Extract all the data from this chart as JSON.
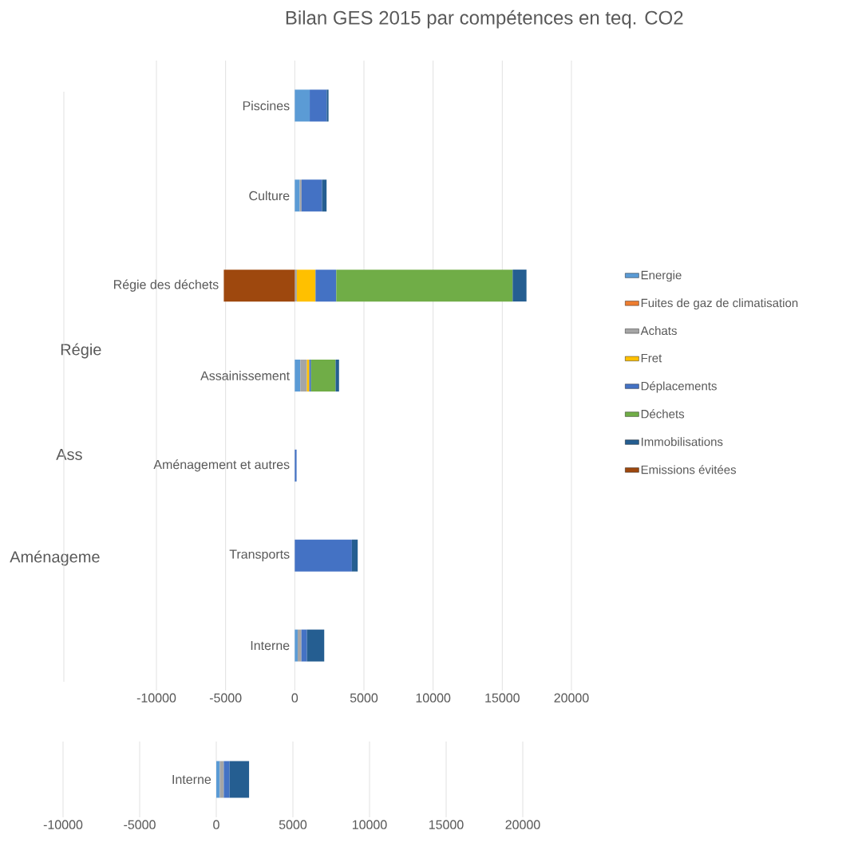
{
  "chart_data": [
    {
      "type": "bar",
      "orientation": "horizontal",
      "stacked": true,
      "title": "Bilan GES 2015 par compétences  en teq. CO2",
      "categories": [
        "Piscines",
        "Culture",
        "Régie des déchets",
        "Assainissement",
        "Aménagement et autres",
        "Transports",
        "Interne"
      ],
      "series": [
        {
          "name": "Energie",
          "color": "#5b9bd5",
          "values": [
            1080,
            360,
            null,
            400,
            null,
            null,
            210
          ]
        },
        {
          "name": "Fuites de gaz de climatisation",
          "color": "#ed7d31",
          "values": [
            null,
            null,
            null,
            null,
            null,
            null,
            null
          ]
        },
        {
          "name": "Achats",
          "color": "#a5a5a5",
          "values": [
            null,
            130,
            150,
            480,
            null,
            null,
            270
          ]
        },
        {
          "name": "Fret",
          "color": "#ffc000",
          "values": [
            null,
            null,
            1350,
            170,
            null,
            null,
            null
          ]
        },
        {
          "name": "Déplacements",
          "color": "#4472c4",
          "values": [
            1230,
            1480,
            1500,
            130,
            130,
            4130,
            400
          ]
        },
        {
          "name": "Déchets",
          "color": "#70ad47",
          "values": [
            null,
            null,
            12750,
            1770,
            null,
            null,
            null
          ]
        },
        {
          "name": "Immobilisations",
          "color": "#255e91",
          "values": [
            130,
            330,
            1000,
            250,
            null,
            420,
            1250
          ]
        },
        {
          "name": "Emissions évitées",
          "color": "#9e480e",
          "values": [
            null,
            null,
            -5130,
            null,
            null,
            null,
            null
          ]
        }
      ],
      "xlim": [
        -10000,
        20000
      ],
      "xticks": [
        -10000,
        -5000,
        0,
        5000,
        10000,
        15000,
        20000
      ],
      "grid": "x",
      "legend": "right",
      "annotations": [
        "Régie",
        "Ass",
        "Aménageme"
      ]
    },
    {
      "type": "bar",
      "orientation": "horizontal",
      "stacked": true,
      "categories": [
        "Interne"
      ],
      "series": [
        {
          "color": "#5b9bd5",
          "values": [
            230
          ]
        },
        {
          "color": "#a5a5a5",
          "values": [
            260
          ]
        },
        {
          "color": "#4472c4",
          "values": [
            380
          ]
        },
        {
          "color": "#255e91",
          "values": [
            1270
          ]
        }
      ],
      "xlim": [
        -10000,
        20000
      ],
      "xticks": [
        -10000,
        -5000,
        0,
        5000,
        10000,
        15000,
        20000
      ],
      "grid": "x"
    }
  ]
}
